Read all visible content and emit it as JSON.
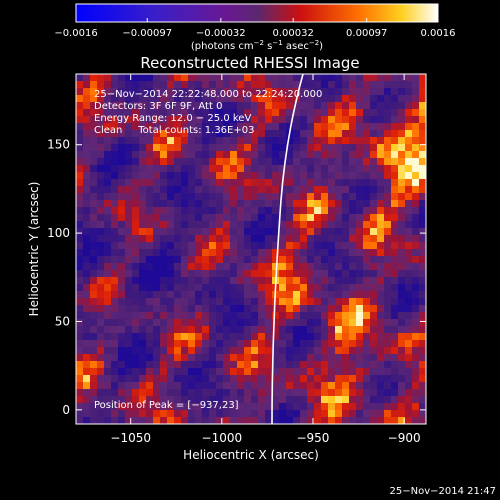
{
  "chart_data": {
    "type": "heatmap",
    "title": "Reconstructed RHESSI Image",
    "xlabel": "Heliocentric X (arcsec)",
    "ylabel": "Heliocentric Y (arcsec)",
    "xlim": [
      -1080,
      -888
    ],
    "ylim": [
      -8,
      190
    ],
    "x_ticks": [
      -1050,
      -1000,
      -950,
      -900
    ],
    "y_ticks": [
      0,
      50,
      100,
      150
    ],
    "colorbar": {
      "min": -0.0016,
      "max": 0.0016,
      "ticks": [
        -0.0016,
        -0.00097,
        -0.00032,
        0.00032,
        0.00097,
        0.0016
      ],
      "tick_labels": [
        "−0.0016",
        "−0.00097",
        "−0.00032",
        "0.00032",
        "0.00097",
        "0.0016"
      ],
      "units_prefix": "(photons cm",
      "units_sup1": "−2",
      "units_mid": " s",
      "units_sup2": "−1",
      "units_suffix": " asec",
      "units_sup3": "−2",
      "units_end": ")"
    },
    "annotations": {
      "line1": "25−Nov−2014 22:22:48.000 to 22:24:20.000",
      "line2": "Detectors: 3F 6F 9F, Att 0",
      "line3": "Energy Range: 12.0 − 25.0 keV",
      "line4": "Clean     Total counts: 1.36E+03",
      "peak": "Position of Peak = [−937,23]"
    },
    "grid": false
  },
  "footer": {
    "timestamp": "25−Nov−2014 21:47"
  }
}
